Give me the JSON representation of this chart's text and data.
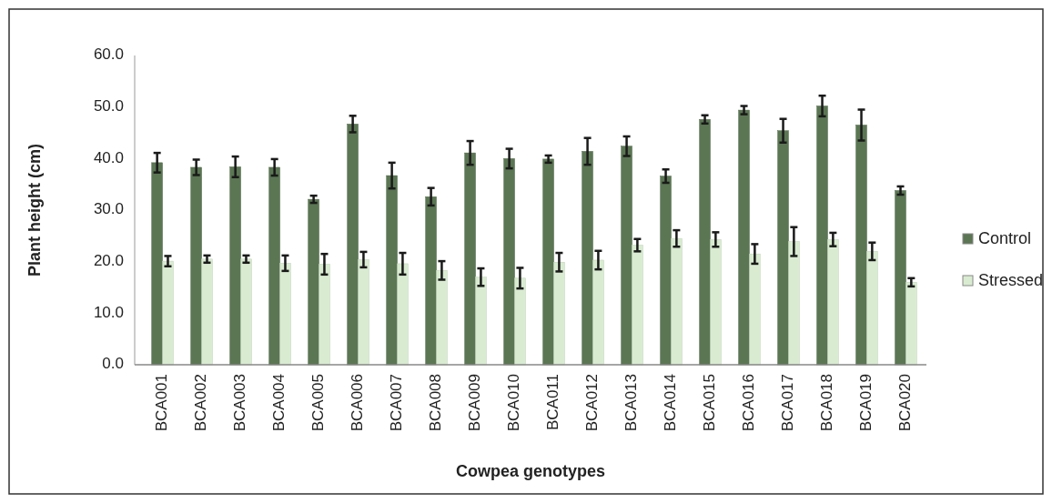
{
  "chart_data": {
    "type": "bar",
    "xlabel": "Cowpea genotypes",
    "ylabel": "Plant height (cm)",
    "categories": [
      "BCA001",
      "BCA002",
      "BCA003",
      "BCA004",
      "BCA005",
      "BCA006",
      "BCA007",
      "BCA008",
      "BCA009",
      "BCA010",
      "BCA011",
      "BCA012",
      "BCA013",
      "BCA014",
      "BCA015",
      "BCA016",
      "BCA017",
      "BCA018",
      "BCA019",
      "BCA020"
    ],
    "series": [
      {
        "name": "Control",
        "color": "#5b7653",
        "values": [
          39.2,
          38.3,
          38.4,
          38.3,
          32.1,
          46.7,
          36.7,
          32.6,
          41.1,
          40.0,
          39.9,
          41.4,
          42.4,
          36.6,
          47.6,
          49.4,
          45.4,
          50.2,
          46.5,
          33.8
        ],
        "errors": [
          1.9,
          1.5,
          2.0,
          1.6,
          0.7,
          1.6,
          2.5,
          1.7,
          2.3,
          1.9,
          0.7,
          2.6,
          1.9,
          1.3,
          0.8,
          0.8,
          2.3,
          2.0,
          3.0,
          0.8
        ]
      },
      {
        "name": "Stressed",
        "color": "#d9ecd1",
        "values": [
          20.1,
          20.5,
          20.5,
          19.7,
          19.5,
          20.4,
          19.6,
          18.3,
          17.0,
          16.8,
          19.9,
          20.3,
          23.2,
          24.5,
          24.3,
          21.5,
          23.9,
          24.3,
          22.0,
          16.0
        ],
        "errors": [
          1.0,
          0.7,
          0.7,
          1.5,
          2.0,
          1.5,
          2.1,
          1.8,
          1.7,
          2.0,
          1.8,
          1.8,
          1.2,
          1.6,
          1.4,
          1.9,
          2.8,
          1.3,
          1.7,
          0.8
        ]
      }
    ],
    "ylim": [
      0,
      60
    ],
    "yticks": [
      {
        "value": 0,
        "label": "0.0"
      },
      {
        "value": 10,
        "label": "10.0"
      },
      {
        "value": 20,
        "label": "20.0"
      },
      {
        "value": 30,
        "label": "30.0"
      },
      {
        "value": 40,
        "label": "40.0"
      },
      {
        "value": 50,
        "label": "50.0"
      },
      {
        "value": 60,
        "label": "60.0"
      }
    ],
    "grid": false,
    "legend": "right"
  }
}
